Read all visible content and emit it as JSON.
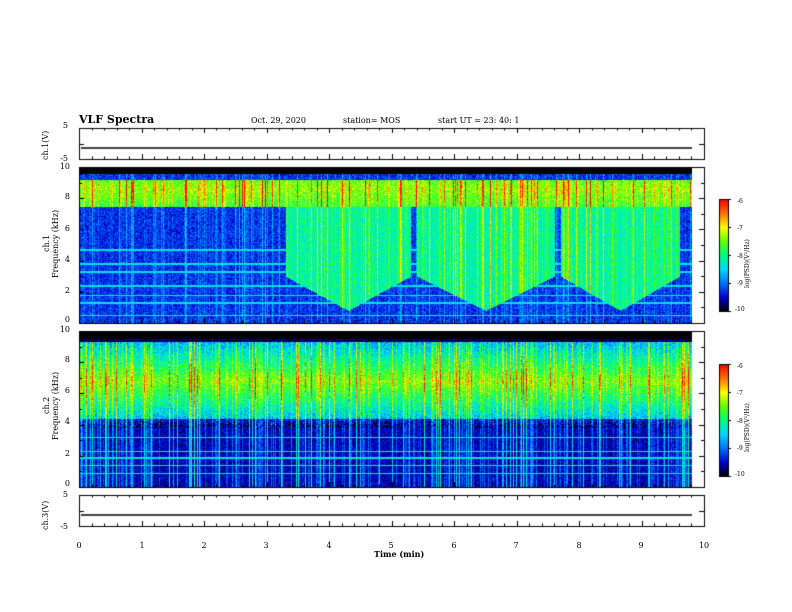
{
  "header": {
    "title": "VLF Spectra",
    "date": "Oct. 29, 2020",
    "station": "station= MOS",
    "start_ut": "start  UT  =   23: 40: 1"
  },
  "colors": {
    "colormap": [
      "#000000",
      "#0000d0",
      "#0070ff",
      "#00d8ff",
      "#00ff80",
      "#60ff00",
      "#ffff00",
      "#ff7000",
      "#ff0000",
      "#ffffff"
    ]
  },
  "chart_data": [
    {
      "type": "line",
      "name": "ch.1 waveform",
      "ylabel": "ch.1(V)",
      "yticks": [
        "5",
        "-5"
      ],
      "ylim": [
        -5,
        5
      ],
      "x": [
        0,
        10
      ],
      "y": [
        -0.5,
        -0.5
      ]
    },
    {
      "type": "heatmap",
      "name": "ch.1 spectrogram",
      "ylabel_line1": "ch.1",
      "ylabel_line2": "Frequency (kHz)",
      "yticks": [
        "0",
        "2",
        "4",
        "6",
        "8",
        "10"
      ],
      "ylim": [
        0,
        10
      ],
      "xlim": [
        0,
        9.8
      ],
      "features": {
        "band_upper_khz": [
          7.5,
          9.2
        ],
        "band_upper_level": -7.2,
        "broadband_segments_min": [
          [
            3.3,
            5.3
          ],
          [
            5.4,
            7.6
          ],
          [
            7.7,
            9.6
          ]
        ],
        "broadband_range_khz": [
          0.5,
          8.5
        ],
        "broadband_level": -8.1,
        "lines_khz": [
          0.5,
          1.3,
          1.8,
          2.4,
          3.3,
          3.8,
          4.7
        ],
        "background_level": -9.3
      },
      "colorbar": {
        "label": "log(PSD)(V²/Hz)",
        "ticks": [
          "-6",
          "-7",
          "-8",
          "-9",
          "-10"
        ],
        "range": [
          -10,
          -6
        ]
      }
    },
    {
      "type": "heatmap",
      "name": "ch.2 spectrogram",
      "ylabel_line1": "ch.2",
      "ylabel_line2": "Frequency (kHz)",
      "yticks": [
        "0",
        "2",
        "4",
        "6",
        "8",
        "10"
      ],
      "ylim": [
        0,
        10
      ],
      "xlim": [
        0,
        9.8
      ],
      "features": {
        "band_khz": [
          3.8,
          9.3
        ],
        "band_peak_khz": 6.8,
        "band_level": -7.5,
        "lines_khz": [
          0.9,
          1.4,
          1.9,
          2.3,
          3.2
        ],
        "background_level": -9.8
      },
      "colorbar": {
        "label": "log(PSD)(V²/Hz)",
        "ticks": [
          "-6",
          "-7",
          "-8",
          "-9",
          "-10"
        ],
        "range": [
          -10,
          -6
        ]
      }
    },
    {
      "type": "line",
      "name": "ch.3 waveform",
      "ylabel": "ch.3(V)",
      "yticks": [
        "5",
        "-5"
      ],
      "ylim": [
        -5,
        5
      ],
      "x": [
        0,
        10
      ],
      "y": [
        -0.5,
        -0.5
      ]
    }
  ],
  "xaxis": {
    "label": "Time  (min)",
    "ticks": [
      "0",
      "1",
      "2",
      "3",
      "4",
      "5",
      "6",
      "7",
      "8",
      "9",
      "10"
    ],
    "range": [
      0,
      10
    ]
  }
}
